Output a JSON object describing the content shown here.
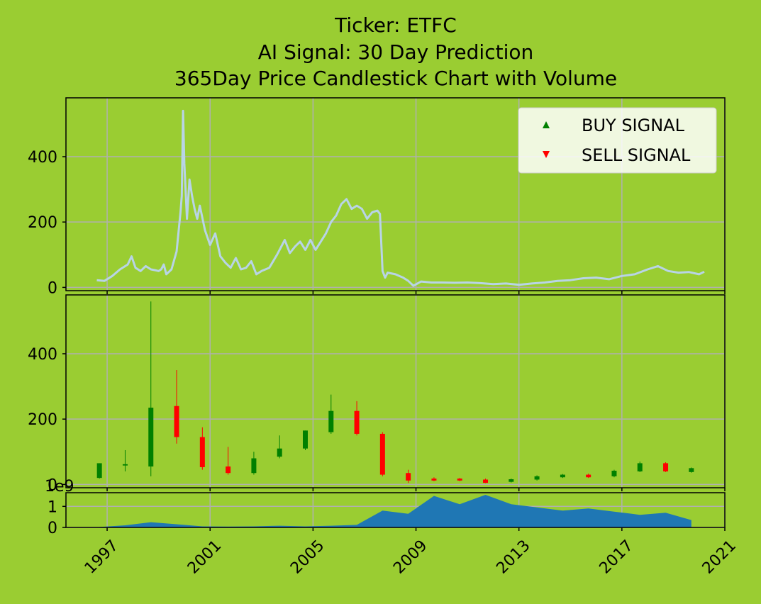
{
  "title_lines": [
    "Ticker: ETFC",
    "AI Signal: 30 Day Prediction",
    "365Day Price Candlestick Chart with Volume"
  ],
  "colors": {
    "background": "#9acd32",
    "price_line": "#b8d4e6",
    "up": "#008000",
    "down": "#ff0000",
    "volume": "#1f77b4",
    "grid": "#b0b0b0"
  },
  "legend": {
    "buy_label": "BUY SIGNAL",
    "sell_label": "SELL SIGNAL",
    "placement": "upper-right"
  },
  "chart_data": [
    {
      "type": "line",
      "panel": "price",
      "x_range": [
        1995.4,
        2021.0
      ],
      "y_range": [
        -10,
        580
      ],
      "yticks": [
        0,
        200,
        400
      ],
      "xticks": [
        1997,
        2001,
        2005,
        2009,
        2013,
        2017,
        2021
      ],
      "grid": true,
      "x": [
        1996.6,
        1996.9,
        1997.2,
        1997.5,
        1997.8,
        1997.95,
        1998.1,
        1998.3,
        1998.5,
        1998.7,
        1998.9,
        1999.0,
        1999.1,
        1999.2,
        1999.3,
        1999.5,
        1999.7,
        1999.85,
        1999.9,
        1999.95,
        2000.0,
        2000.1,
        2000.2,
        2000.3,
        2000.4,
        2000.5,
        2000.6,
        2000.8,
        2001.0,
        2001.2,
        2001.4,
        2001.6,
        2001.8,
        2002.0,
        2002.2,
        2002.4,
        2002.6,
        2002.8,
        2003.0,
        2003.3,
        2003.6,
        2003.9,
        2004.1,
        2004.3,
        2004.5,
        2004.7,
        2004.9,
        2005.1,
        2005.3,
        2005.5,
        2005.7,
        2005.9,
        2006.1,
        2006.3,
        2006.5,
        2006.7,
        2006.9,
        2007.1,
        2007.3,
        2007.5,
        2007.6,
        2007.7,
        2007.8,
        2007.9,
        2008.2,
        2008.5,
        2008.7,
        2008.9,
        2009.2,
        2009.6,
        2010.0,
        2010.5,
        2011.0,
        2011.5,
        2012.0,
        2012.5,
        2013.0,
        2013.5,
        2014.0,
        2014.5,
        2015.0,
        2015.5,
        2016.0,
        2016.5,
        2017.0,
        2017.5,
        2018.0,
        2018.4,
        2018.8,
        2019.2,
        2019.6,
        2020.0,
        2020.2
      ],
      "y": [
        22,
        20,
        35,
        55,
        70,
        95,
        60,
        50,
        65,
        55,
        52,
        50,
        55,
        70,
        40,
        55,
        110,
        230,
        280,
        540,
        380,
        210,
        330,
        280,
        240,
        210,
        250,
        175,
        130,
        165,
        95,
        75,
        60,
        90,
        55,
        60,
        80,
        40,
        50,
        60,
        100,
        145,
        105,
        125,
        140,
        115,
        145,
        115,
        140,
        165,
        200,
        220,
        255,
        270,
        240,
        250,
        240,
        210,
        230,
        235,
        225,
        50,
        30,
        45,
        40,
        30,
        20,
        5,
        18,
        15,
        15,
        14,
        15,
        13,
        10,
        12,
        8,
        12,
        15,
        20,
        22,
        28,
        30,
        25,
        35,
        40,
        55,
        65,
        50,
        45,
        47,
        40,
        48
      ]
    },
    {
      "type": "candlestick",
      "panel": "ohlc",
      "y_range": [
        -10,
        580
      ],
      "yticks": [
        0,
        200,
        400
      ],
      "grid": true,
      "candles": [
        {
          "x": 1996.7,
          "open": 20,
          "close": 65,
          "high": 65,
          "low": 18
        },
        {
          "x": 1997.7,
          "open": 58,
          "close": 62,
          "high": 105,
          "low": 40
        },
        {
          "x": 1998.7,
          "open": 55,
          "close": 235,
          "high": 560,
          "low": 25
        },
        {
          "x": 1999.7,
          "open": 240,
          "close": 145,
          "high": 350,
          "low": 125
        },
        {
          "x": 2000.7,
          "open": 145,
          "close": 53,
          "high": 175,
          "low": 45
        },
        {
          "x": 2001.7,
          "open": 55,
          "close": 35,
          "high": 115,
          "low": 30
        },
        {
          "x": 2002.7,
          "open": 35,
          "close": 80,
          "high": 100,
          "low": 30
        },
        {
          "x": 2003.7,
          "open": 85,
          "close": 110,
          "high": 150,
          "low": 80
        },
        {
          "x": 2004.7,
          "open": 110,
          "close": 165,
          "high": 165,
          "low": 105
        },
        {
          "x": 2005.7,
          "open": 160,
          "close": 225,
          "high": 275,
          "low": 155
        },
        {
          "x": 2006.7,
          "open": 225,
          "close": 155,
          "high": 255,
          "low": 150
        },
        {
          "x": 2007.7,
          "open": 155,
          "close": 30,
          "high": 160,
          "low": 25
        },
        {
          "x": 2008.7,
          "open": 35,
          "close": 12,
          "high": 45,
          "low": 5
        },
        {
          "x": 2009.7,
          "open": 18,
          "close": 12,
          "high": 22,
          "low": 10
        },
        {
          "x": 2010.7,
          "open": 18,
          "close": 12,
          "high": 20,
          "low": 10
        },
        {
          "x": 2011.7,
          "open": 15,
          "close": 5,
          "high": 18,
          "low": 4
        },
        {
          "x": 2012.7,
          "open": 8,
          "close": 16,
          "high": 18,
          "low": 6
        },
        {
          "x": 2013.7,
          "open": 15,
          "close": 25,
          "high": 28,
          "low": 12
        },
        {
          "x": 2014.7,
          "open": 22,
          "close": 30,
          "high": 32,
          "low": 20
        },
        {
          "x": 2015.7,
          "open": 30,
          "close": 22,
          "high": 33,
          "low": 20
        },
        {
          "x": 2016.7,
          "open": 25,
          "close": 42,
          "high": 45,
          "low": 22
        },
        {
          "x": 2017.7,
          "open": 40,
          "close": 65,
          "high": 70,
          "low": 38
        },
        {
          "x": 2018.7,
          "open": 65,
          "close": 40,
          "high": 68,
          "low": 38
        },
        {
          "x": 2019.7,
          "open": 38,
          "close": 50,
          "high": 52,
          "low": 36
        }
      ]
    },
    {
      "type": "area",
      "panel": "volume",
      "multiplier_label": "1e9",
      "y_range": [
        0,
        1.65
      ],
      "yticks": [
        0,
        1
      ],
      "grid": true,
      "x": [
        1996.7,
        1997.7,
        1998.7,
        1999.7,
        2000.7,
        2001.7,
        2002.7,
        2003.7,
        2004.7,
        2005.7,
        2006.7,
        2007.7,
        2008.7,
        2009.7,
        2010.7,
        2011.7,
        2012.7,
        2013.7,
        2014.7,
        2015.7,
        2016.7,
        2017.7,
        2018.7,
        2019.7
      ],
      "values": [
        0.02,
        0.1,
        0.25,
        0.15,
        0.05,
        0.04,
        0.05,
        0.08,
        0.05,
        0.08,
        0.12,
        0.8,
        0.65,
        1.5,
        1.1,
        1.55,
        1.1,
        0.95,
        0.8,
        0.9,
        0.75,
        0.6,
        0.7,
        0.35
      ]
    }
  ]
}
